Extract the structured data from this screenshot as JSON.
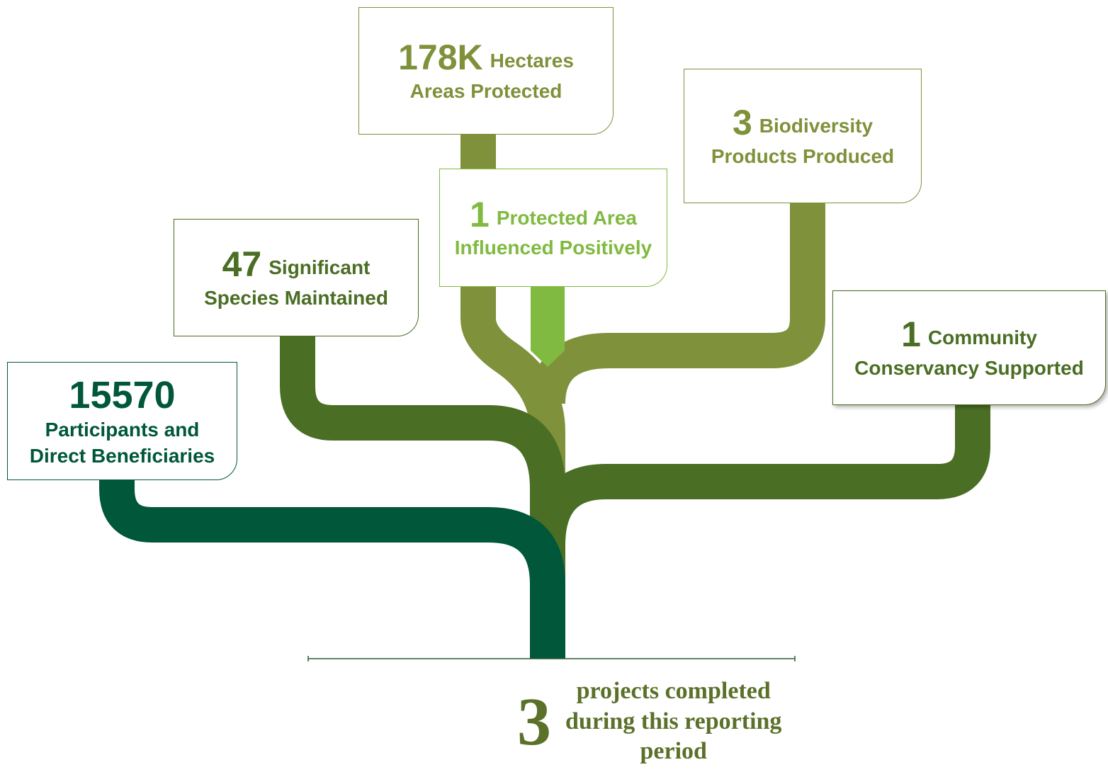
{
  "nodes": [
    {
      "number": "178K",
      "inline": "Hectares",
      "lines": [
        "Areas Protected"
      ]
    },
    {
      "number": "3",
      "inline": "Biodiversity",
      "lines": [
        "Products Produced"
      ]
    },
    {
      "number": "1",
      "inline": "Protected Area",
      "lines": [
        "Influenced Positively"
      ]
    },
    {
      "number": "47",
      "inline": "Significant",
      "lines": [
        "Species Maintained"
      ]
    },
    {
      "number": "1",
      "inline": "Community",
      "lines": [
        "Conservancy Supported"
      ]
    },
    {
      "number": "15570",
      "lines": [
        "Participants and",
        "Direct Beneficiaries"
      ]
    }
  ],
  "footer": {
    "number": "3",
    "lines": [
      "projects completed",
      "during this reporting",
      "period"
    ]
  }
}
